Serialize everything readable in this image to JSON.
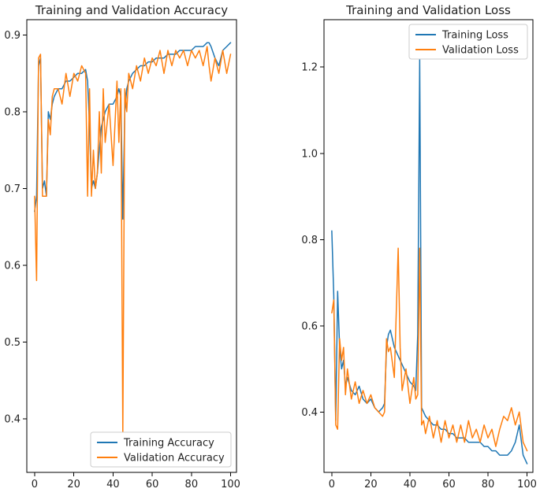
{
  "colors": {
    "training": "#1f77b4",
    "validation": "#ff7f0e"
  },
  "chart_data": [
    {
      "type": "line",
      "title": "Training and Validation Accuracy",
      "xlabel": "",
      "ylabel": "",
      "xlim": [
        -4,
        103
      ],
      "ylim": [
        0.33,
        0.92
      ],
      "xticks": [
        0,
        20,
        40,
        60,
        80,
        100
      ],
      "xtick_labels": [
        "0",
        "20",
        "40",
        "60",
        "80",
        "100"
      ],
      "yticks": [
        0.4,
        0.5,
        0.6,
        0.7,
        0.8,
        0.9
      ],
      "ytick_labels": [
        "0.4",
        "0.5",
        "0.6",
        "0.7",
        "0.8",
        "0.9"
      ],
      "legend_position": "lower-right",
      "series": [
        {
          "name": "Training Accuracy",
          "color_key": "training",
          "x": [
            0,
            1,
            2,
            3,
            4,
            5,
            6,
            7,
            8,
            9,
            10,
            12,
            14,
            16,
            18,
            20,
            22,
            24,
            26,
            27,
            28,
            29,
            30,
            31,
            32,
            33,
            34,
            35,
            36,
            38,
            40,
            42,
            43,
            44,
            45,
            46,
            47,
            48,
            50,
            52,
            54,
            56,
            58,
            60,
            62,
            64,
            66,
            68,
            70,
            72,
            74,
            76,
            78,
            80,
            82,
            84,
            86,
            88,
            89,
            90,
            92,
            94,
            96,
            98,
            100
          ],
          "y": [
            0.67,
            0.69,
            0.86,
            0.87,
            0.7,
            0.71,
            0.69,
            0.8,
            0.79,
            0.81,
            0.82,
            0.83,
            0.83,
            0.84,
            0.84,
            0.845,
            0.85,
            0.85,
            0.855,
            0.84,
            0.78,
            0.7,
            0.71,
            0.7,
            0.72,
            0.75,
            0.78,
            0.79,
            0.8,
            0.81,
            0.81,
            0.82,
            0.83,
            0.82,
            0.66,
            0.8,
            0.83,
            0.84,
            0.85,
            0.855,
            0.86,
            0.86,
            0.865,
            0.865,
            0.87,
            0.87,
            0.87,
            0.875,
            0.875,
            0.875,
            0.88,
            0.88,
            0.88,
            0.88,
            0.885,
            0.885,
            0.885,
            0.89,
            0.89,
            0.885,
            0.87,
            0.86,
            0.88,
            0.885,
            0.89
          ]
        },
        {
          "name": "Validation Accuracy",
          "color_key": "validation",
          "x": [
            0,
            1,
            2,
            3,
            4,
            5,
            6,
            7,
            8,
            9,
            10,
            12,
            14,
            16,
            18,
            20,
            22,
            24,
            26,
            27,
            28,
            29,
            30,
            31,
            32,
            33,
            34,
            35,
            36,
            38,
            40,
            42,
            43,
            44,
            45,
            46,
            47,
            48,
            50,
            52,
            54,
            56,
            58,
            60,
            62,
            64,
            66,
            68,
            70,
            72,
            74,
            76,
            78,
            80,
            82,
            84,
            86,
            88,
            89,
            90,
            92,
            94,
            96,
            98,
            100
          ],
          "y": [
            0.69,
            0.58,
            0.87,
            0.875,
            0.69,
            0.69,
            0.69,
            0.79,
            0.77,
            0.82,
            0.83,
            0.83,
            0.81,
            0.85,
            0.82,
            0.85,
            0.84,
            0.86,
            0.85,
            0.69,
            0.83,
            0.69,
            0.75,
            0.7,
            0.72,
            0.8,
            0.72,
            0.83,
            0.76,
            0.81,
            0.73,
            0.84,
            0.76,
            0.83,
            0.38,
            0.83,
            0.8,
            0.85,
            0.83,
            0.86,
            0.84,
            0.87,
            0.85,
            0.87,
            0.86,
            0.88,
            0.85,
            0.88,
            0.86,
            0.88,
            0.87,
            0.88,
            0.86,
            0.88,
            0.87,
            0.88,
            0.86,
            0.885,
            0.86,
            0.84,
            0.87,
            0.85,
            0.88,
            0.85,
            0.875
          ]
        }
      ]
    },
    {
      "type": "line",
      "title": "Training and Validation Loss",
      "xlabel": "",
      "ylabel": "",
      "xlim": [
        -4,
        103
      ],
      "ylim": [
        0.26,
        1.31
      ],
      "xticks": [
        0,
        20,
        40,
        60,
        80,
        100
      ],
      "xtick_labels": [
        "0",
        "20",
        "40",
        "60",
        "80",
        "100"
      ],
      "yticks": [
        0.4,
        0.6,
        0.8,
        1.0,
        1.2
      ],
      "ytick_labels": [
        "0.4",
        "0.6",
        "0.8",
        "1.0",
        "1.2"
      ],
      "legend_position": "upper-right",
      "series": [
        {
          "name": "Training Loss",
          "color_key": "training",
          "x": [
            0,
            1,
            2,
            3,
            4,
            5,
            6,
            7,
            8,
            10,
            12,
            14,
            16,
            18,
            20,
            22,
            24,
            26,
            27,
            28,
            29,
            30,
            32,
            34,
            36,
            38,
            40,
            42,
            43,
            44,
            45,
            46,
            47,
            48,
            50,
            52,
            54,
            56,
            58,
            60,
            62,
            64,
            66,
            68,
            70,
            72,
            74,
            76,
            78,
            80,
            82,
            84,
            86,
            88,
            90,
            92,
            94,
            96,
            98,
            100
          ],
          "y": [
            0.82,
            0.67,
            0.38,
            0.68,
            0.55,
            0.5,
            0.52,
            0.46,
            0.48,
            0.45,
            0.44,
            0.46,
            0.43,
            0.42,
            0.43,
            0.41,
            0.4,
            0.41,
            0.42,
            0.55,
            0.58,
            0.59,
            0.55,
            0.53,
            0.51,
            0.49,
            0.47,
            0.46,
            0.45,
            0.58,
            1.22,
            0.41,
            0.4,
            0.39,
            0.38,
            0.37,
            0.37,
            0.36,
            0.36,
            0.35,
            0.35,
            0.34,
            0.34,
            0.34,
            0.33,
            0.33,
            0.33,
            0.33,
            0.32,
            0.32,
            0.31,
            0.31,
            0.3,
            0.3,
            0.3,
            0.31,
            0.33,
            0.37,
            0.3,
            0.28
          ]
        },
        {
          "name": "Validation Loss",
          "color_key": "validation",
          "x": [
            0,
            1,
            2,
            3,
            4,
            5,
            6,
            7,
            8,
            10,
            12,
            14,
            16,
            18,
            20,
            22,
            24,
            26,
            27,
            28,
            29,
            30,
            32,
            34,
            35,
            36,
            38,
            40,
            42,
            43,
            44,
            45,
            46,
            47,
            48,
            50,
            52,
            54,
            56,
            58,
            60,
            62,
            64,
            66,
            68,
            70,
            72,
            74,
            76,
            78,
            80,
            82,
            84,
            86,
            88,
            90,
            92,
            94,
            96,
            98,
            100
          ],
          "y": [
            0.63,
            0.66,
            0.37,
            0.36,
            0.57,
            0.52,
            0.55,
            0.44,
            0.5,
            0.43,
            0.47,
            0.42,
            0.45,
            0.42,
            0.44,
            0.41,
            0.4,
            0.39,
            0.4,
            0.57,
            0.54,
            0.55,
            0.48,
            0.78,
            0.55,
            0.45,
            0.5,
            0.42,
            0.48,
            0.43,
            0.44,
            0.78,
            0.37,
            0.38,
            0.35,
            0.39,
            0.34,
            0.38,
            0.33,
            0.38,
            0.34,
            0.37,
            0.33,
            0.37,
            0.33,
            0.38,
            0.34,
            0.36,
            0.33,
            0.37,
            0.34,
            0.36,
            0.32,
            0.36,
            0.39,
            0.38,
            0.41,
            0.37,
            0.4,
            0.33,
            0.31
          ]
        }
      ]
    }
  ]
}
